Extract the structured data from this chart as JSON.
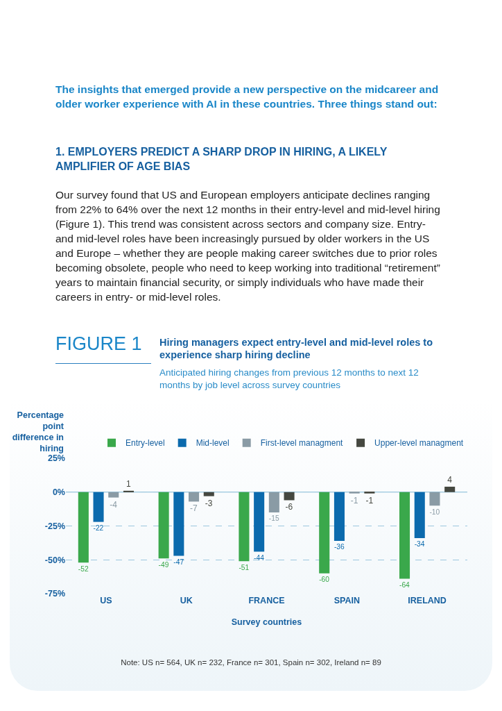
{
  "chart_data": {
    "type": "bar",
    "title": "Hiring managers expect entry-level and mid-level roles to experience sharp hiring decline",
    "subtitle": "Anticipated hiring changes from previous 12 months to next 12 months by job level across survey countries",
    "xlabel": "Survey countries",
    "ylabel": "Percentage point difference in hiring",
    "annotations": [
      "The insights that emerged provide a new perspective on the midcareer and older worker experience with AI in these countries. Three things stand out:",
      "1. EMPLOYERS PREDICT A SHARP DROP IN HIRING, A LIKELY AMPLIFIER OF AGE BIAS",
      "Our survey found that US and European employers anticipate declines ranging from 22% to 64% over the next 12 months in their entry-level and mid-level hiring (Figure 1). This trend was consistent across sectors and company size. Entry- and mid-level roles have been increasingly pursued by older workers in the US and Europe – whether they are people making career switches due to prior roles becoming obsolete, people who need to keep working into traditional “retirement” years to maintain financial security, or simply individuals who have made their careers in entry- or mid-level roles.",
      "FIGURE 1",
      "Note: US n= 564, UK n= 232, France n= 301, Spain n= 302, Ireland n= 89"
    ],
    "categories": [
      "US",
      "UK",
      "FRANCE",
      "SPAIN",
      "IRELAND"
    ],
    "series": [
      {
        "name": "Entry-level",
        "color": "#3aa84b",
        "values": [
          -52,
          -49,
          -51,
          -60,
          -64
        ]
      },
      {
        "name": "Mid-level",
        "color": "#0b6aad",
        "values": [
          -22,
          -47,
          -44,
          -36,
          -34
        ]
      },
      {
        "name": "First-level managment",
        "color": "#8a9ba5",
        "values": [
          -4,
          -7,
          -15,
          -1,
          -10
        ]
      },
      {
        "name": "Upper-level managment",
        "color": "#454840",
        "values": [
          1,
          -3,
          -6,
          -1,
          4
        ]
      }
    ],
    "data_labels": true,
    "ylim": [
      -75,
      25
    ],
    "ref_lines": [
      {
        "axis": "y",
        "value": 0,
        "color": "#7fb8d6"
      }
    ],
    "yticks": [
      {
        "value": 25,
        "label": "25%"
      },
      {
        "value": 0,
        "label": "0%"
      },
      {
        "value": -25,
        "label": "-25%"
      },
      {
        "value": -50,
        "label": "-50%"
      },
      {
        "value": -75,
        "label": "-75%"
      }
    ],
    "grid": "y",
    "legend": "top right"
  }
}
